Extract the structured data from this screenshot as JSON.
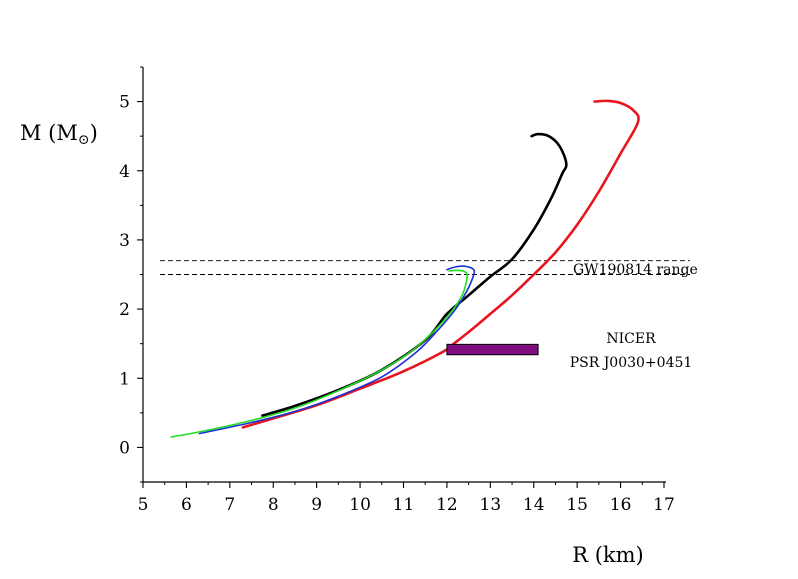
{
  "chart_data": {
    "type": "line",
    "title": "",
    "xlabel": "R (km)",
    "ylabel_main": "M (M",
    "ylabel_sub": "⊙",
    "ylabel_close": ")",
    "xlim": [
      5,
      17
    ],
    "ylim": [
      -0.5,
      5.5
    ],
    "xticks": [
      "5",
      "6",
      "7",
      "8",
      "9",
      "10",
      "11",
      "12",
      "13",
      "14",
      "15",
      "16",
      "17"
    ],
    "yticks": [
      "0",
      "1",
      "2",
      "3",
      "4",
      "5"
    ],
    "series": [
      {
        "name": "red",
        "color": "#e8141e",
        "width": 2.6,
        "points": [
          [
            7.3,
            0.29
          ],
          [
            8.0,
            0.42
          ],
          [
            9.0,
            0.61
          ],
          [
            10.0,
            0.85
          ],
          [
            11.0,
            1.1
          ],
          [
            11.9,
            1.38
          ],
          [
            12.2,
            1.52
          ],
          [
            12.6,
            1.72
          ],
          [
            13.0,
            1.93
          ],
          [
            13.5,
            2.2
          ],
          [
            14.0,
            2.5
          ],
          [
            14.5,
            2.82
          ],
          [
            15.0,
            3.22
          ],
          [
            15.5,
            3.7
          ],
          [
            16.0,
            4.25
          ],
          [
            16.4,
            4.7
          ],
          [
            16.3,
            4.87
          ],
          [
            16.0,
            4.98
          ],
          [
            15.7,
            5.01
          ],
          [
            15.4,
            5.0
          ]
        ]
      },
      {
        "name": "black",
        "color": "#000000",
        "width": 2.6,
        "points": [
          [
            7.75,
            0.46
          ],
          [
            8.5,
            0.6
          ],
          [
            9.5,
            0.83
          ],
          [
            10.5,
            1.12
          ],
          [
            11.5,
            1.55
          ],
          [
            12.0,
            1.93
          ],
          [
            12.5,
            2.2
          ],
          [
            13.0,
            2.47
          ],
          [
            13.5,
            2.72
          ],
          [
            14.0,
            3.15
          ],
          [
            14.4,
            3.6
          ],
          [
            14.65,
            3.95
          ],
          [
            14.75,
            4.1
          ],
          [
            14.6,
            4.35
          ],
          [
            14.35,
            4.5
          ],
          [
            14.1,
            4.53
          ],
          [
            13.95,
            4.5
          ]
        ]
      },
      {
        "name": "blue",
        "color": "#1a2fd6",
        "width": 1.6,
        "points": [
          [
            6.3,
            0.2
          ],
          [
            7.5,
            0.36
          ],
          [
            8.5,
            0.52
          ],
          [
            9.5,
            0.74
          ],
          [
            10.5,
            1.02
          ],
          [
            11.3,
            1.38
          ],
          [
            11.8,
            1.7
          ],
          [
            12.2,
            2.0
          ],
          [
            12.45,
            2.25
          ],
          [
            12.62,
            2.5
          ],
          [
            12.6,
            2.58
          ],
          [
            12.4,
            2.62
          ],
          [
            12.2,
            2.61
          ],
          [
            12.0,
            2.57
          ]
        ]
      },
      {
        "name": "green",
        "color": "#22dd22",
        "width": 1.6,
        "points": [
          [
            5.65,
            0.15
          ],
          [
            6.5,
            0.25
          ],
          [
            7.5,
            0.39
          ],
          [
            8.5,
            0.57
          ],
          [
            9.5,
            0.82
          ],
          [
            10.5,
            1.12
          ],
          [
            11.2,
            1.4
          ],
          [
            11.7,
            1.68
          ],
          [
            12.1,
            1.96
          ],
          [
            12.35,
            2.2
          ],
          [
            12.45,
            2.4
          ],
          [
            12.45,
            2.52
          ],
          [
            12.3,
            2.56
          ],
          [
            12.05,
            2.55
          ]
        ]
      }
    ],
    "reference_lines": [
      {
        "y": 2.7,
        "style": "dashed"
      },
      {
        "y": 2.5,
        "style": "dashed"
      }
    ],
    "region": {
      "x": [
        12.0,
        14.1
      ],
      "y": [
        1.34,
        1.49
      ],
      "fill": "#800d80"
    },
    "annotations": {
      "gw": "GW190814 range",
      "nicer_line1": "NICER",
      "nicer_line2": "PSR J0030+0451"
    }
  }
}
